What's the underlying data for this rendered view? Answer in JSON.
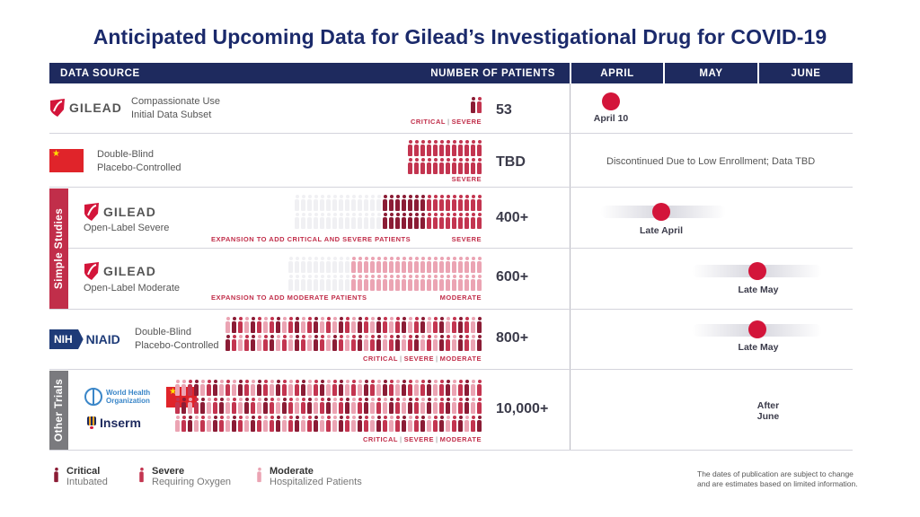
{
  "title": "Anticipated Upcoming Data for Gilead’s Investigational Drug for COVID-19",
  "header": {
    "data_source": "DATA SOURCE",
    "number_of_patients": "NUMBER OF PATIENTS",
    "months": [
      "APRIL",
      "MAY",
      "JUNE"
    ]
  },
  "groups": {
    "simple": "Simple Studies",
    "other": "Other Trials"
  },
  "logos": {
    "gilead": "GILEAD",
    "nih": "NIH",
    "niaid": "NIAID",
    "who_line1": "World Health",
    "who_line2": "Organization",
    "inserm": "Inserm"
  },
  "rows": [
    {
      "id": "r1",
      "desc1": "Compassionate Use",
      "desc2": "Initial Data Subset",
      "caption": [
        "CRITICAL",
        "SEVERE"
      ],
      "count": "53",
      "timeline": "April 10"
    },
    {
      "id": "r2",
      "desc1": "Double-Blind",
      "desc2": "Placebo-Controlled",
      "caption": [
        "SEVERE"
      ],
      "count": "TBD",
      "timeline": "Discontinued Due to Low Enrollment; Data TBD"
    },
    {
      "id": "r3",
      "desc1": "Open-Label Severe",
      "expansion": "EXPANSION TO ADD CRITICAL AND SEVERE PATIENTS",
      "caption": [
        "SEVERE"
      ],
      "count": "400+",
      "timeline": "Late April"
    },
    {
      "id": "r4",
      "desc1": "Open-Label Moderate",
      "expansion": "EXPANSION TO ADD MODERATE PATIENTS",
      "caption": [
        "MODERATE"
      ],
      "count": "600+",
      "timeline": "Late May"
    },
    {
      "id": "r5",
      "desc1": "Double-Blind",
      "desc2": "Placebo-Controlled",
      "caption": [
        "CRITICAL",
        "SEVERE",
        "MODERATE"
      ],
      "count": "800+",
      "timeline": "Late May"
    },
    {
      "id": "r6",
      "caption": [
        "CRITICAL",
        "SEVERE",
        "MODERATE"
      ],
      "count": "10,000+",
      "timeline1": "After",
      "timeline2": "June"
    }
  ],
  "legend": [
    {
      "title": "Critical",
      "sub": "Intubated",
      "severity": "critical"
    },
    {
      "title": "Severe",
      "sub": "Requiring Oxygen",
      "severity": "severe"
    },
    {
      "title": "Moderate",
      "sub": "Hospitalized Patients",
      "severity": "moderate"
    }
  ],
  "footnote1": "The dates of publication are subject to change",
  "footnote2": "and are estimates based on limited information.",
  "colors": {
    "navy": "#1e2a5e",
    "critical": "#8b1c35",
    "severe": "#c33550",
    "moderate": "#eba4b3",
    "dot": "#d3153a",
    "simple_studies": "#c12e4a",
    "other_trials": "#7a7a7e"
  },
  "icon_grids": {
    "r1": {
      "rows": [
        [
          "crit",
          "sev"
        ]
      ]
    },
    "r2": {
      "rows": [
        [
          "sev",
          "sev",
          "sev",
          "sev",
          "sev",
          "sev",
          "sev",
          "sev",
          "sev",
          "sev",
          "sev",
          "sev"
        ],
        [
          "sev",
          "sev",
          "sev",
          "sev",
          "sev",
          "sev",
          "sev",
          "sev",
          "sev",
          "sev",
          "sev",
          "sev"
        ]
      ]
    },
    "r3": {
      "rows": [
        [
          "ghost",
          "ghost",
          "ghost",
          "ghost",
          "ghost",
          "ghost",
          "ghost",
          "ghost",
          "ghost",
          "ghost",
          "ghost",
          "ghost",
          "ghost",
          "ghost",
          "crit",
          "crit",
          "crit",
          "crit",
          "crit",
          "crit",
          "crit",
          "sev",
          "sev",
          "sev",
          "sev",
          "sev",
          "sev",
          "sev",
          "sev",
          "sev"
        ],
        [
          "ghost",
          "ghost",
          "ghost",
          "ghost",
          "ghost",
          "ghost",
          "ghost",
          "ghost",
          "ghost",
          "ghost",
          "ghost",
          "ghost",
          "ghost",
          "ghost",
          "crit",
          "crit",
          "crit",
          "crit",
          "crit",
          "crit",
          "crit",
          "sev",
          "sev",
          "sev",
          "sev",
          "sev",
          "sev",
          "sev",
          "sev",
          "sev"
        ]
      ]
    },
    "r4": {
      "rows": [
        [
          "ghost",
          "ghost",
          "ghost",
          "ghost",
          "ghost",
          "ghost",
          "ghost",
          "ghost",
          "ghost",
          "ghost",
          "mod",
          "mod",
          "mod",
          "mod",
          "mod",
          "mod",
          "mod",
          "mod",
          "mod",
          "mod",
          "mod",
          "mod",
          "mod",
          "mod",
          "mod",
          "mod",
          "mod",
          "mod",
          "mod",
          "mod",
          "mod"
        ],
        [
          "ghost",
          "ghost",
          "ghost",
          "ghost",
          "ghost",
          "ghost",
          "ghost",
          "ghost",
          "ghost",
          "ghost",
          "mod",
          "mod",
          "mod",
          "mod",
          "mod",
          "mod",
          "mod",
          "mod",
          "mod",
          "mod",
          "mod",
          "mod",
          "mod",
          "mod",
          "mod",
          "mod",
          "mod",
          "mod",
          "mod",
          "mod",
          "mod"
        ]
      ]
    },
    "r5": {
      "rows": [
        [
          "mod",
          "crit",
          "sev",
          "mod",
          "crit",
          "sev",
          "mod",
          "sev",
          "crit",
          "mod",
          "sev",
          "crit",
          "mod",
          "sev",
          "crit",
          "mod",
          "sev",
          "mod",
          "crit",
          "sev",
          "mod",
          "crit",
          "sev",
          "mod",
          "crit",
          "sev",
          "mod",
          "sev",
          "crit",
          "mod",
          "sev",
          "crit",
          "mod",
          "sev",
          "crit",
          "mod",
          "sev",
          "crit",
          "sev",
          "mod",
          "crit"
        ],
        [
          "crit",
          "sev",
          "mod",
          "sev",
          "crit",
          "mod",
          "sev",
          "crit",
          "mod",
          "sev",
          "mod",
          "crit",
          "sev",
          "mod",
          "crit",
          "sev",
          "mod",
          "crit",
          "sev",
          "mod",
          "sev",
          "crit",
          "mod",
          "sev",
          "crit",
          "mod",
          "sev",
          "crit",
          "mod",
          "sev",
          "crit",
          "mod",
          "sev",
          "mod",
          "crit",
          "sev",
          "mod",
          "crit",
          "sev",
          "mod",
          "crit"
        ]
      ]
    },
    "r6": {
      "rows": [
        [
          "mod",
          "mod",
          "sev",
          "crit",
          "mod",
          "sev",
          "crit",
          "mod",
          "sev",
          "mod",
          "crit",
          "sev",
          "mod",
          "crit",
          "sev",
          "mod",
          "crit",
          "sev",
          "mod",
          "sev",
          "crit",
          "mod",
          "sev",
          "crit",
          "mod",
          "sev",
          "crit",
          "mod",
          "sev",
          "mod",
          "crit",
          "sev",
          "mod",
          "crit",
          "sev",
          "mod",
          "crit",
          "sev",
          "mod",
          "sev",
          "crit",
          "mod",
          "sev",
          "crit",
          "mod",
          "sev",
          "crit",
          "mod",
          "sev"
        ],
        [
          "sev",
          "crit",
          "mod",
          "sev",
          "crit",
          "mod",
          "sev",
          "crit",
          "mod",
          "sev",
          "mod",
          "crit",
          "sev",
          "mod",
          "crit",
          "sev",
          "mod",
          "crit",
          "sev",
          "mod",
          "sev",
          "crit",
          "mod",
          "sev",
          "crit",
          "mod",
          "sev",
          "crit",
          "mod",
          "sev",
          "crit",
          "mod",
          "sev",
          "mod",
          "crit",
          "sev",
          "mod",
          "crit",
          "sev",
          "mod",
          "crit",
          "mod",
          "sev",
          "crit",
          "mod",
          "sev",
          "crit",
          "mod",
          "sev"
        ],
        [
          "mod",
          "sev",
          "crit",
          "mod",
          "sev",
          "mod",
          "crit",
          "sev",
          "mod",
          "crit",
          "sev",
          "mod",
          "crit",
          "sev",
          "mod",
          "sev",
          "crit",
          "mod",
          "sev",
          "crit",
          "mod",
          "sev",
          "crit",
          "mod",
          "sev",
          "mod",
          "crit",
          "sev",
          "mod",
          "crit",
          "sev",
          "mod",
          "crit",
          "sev",
          "mod",
          "sev",
          "crit",
          "mod",
          "sev",
          "crit",
          "mod",
          "sev",
          "crit",
          "mod",
          "sev",
          "crit",
          "mod",
          "sev",
          "crit"
        ]
      ]
    }
  }
}
